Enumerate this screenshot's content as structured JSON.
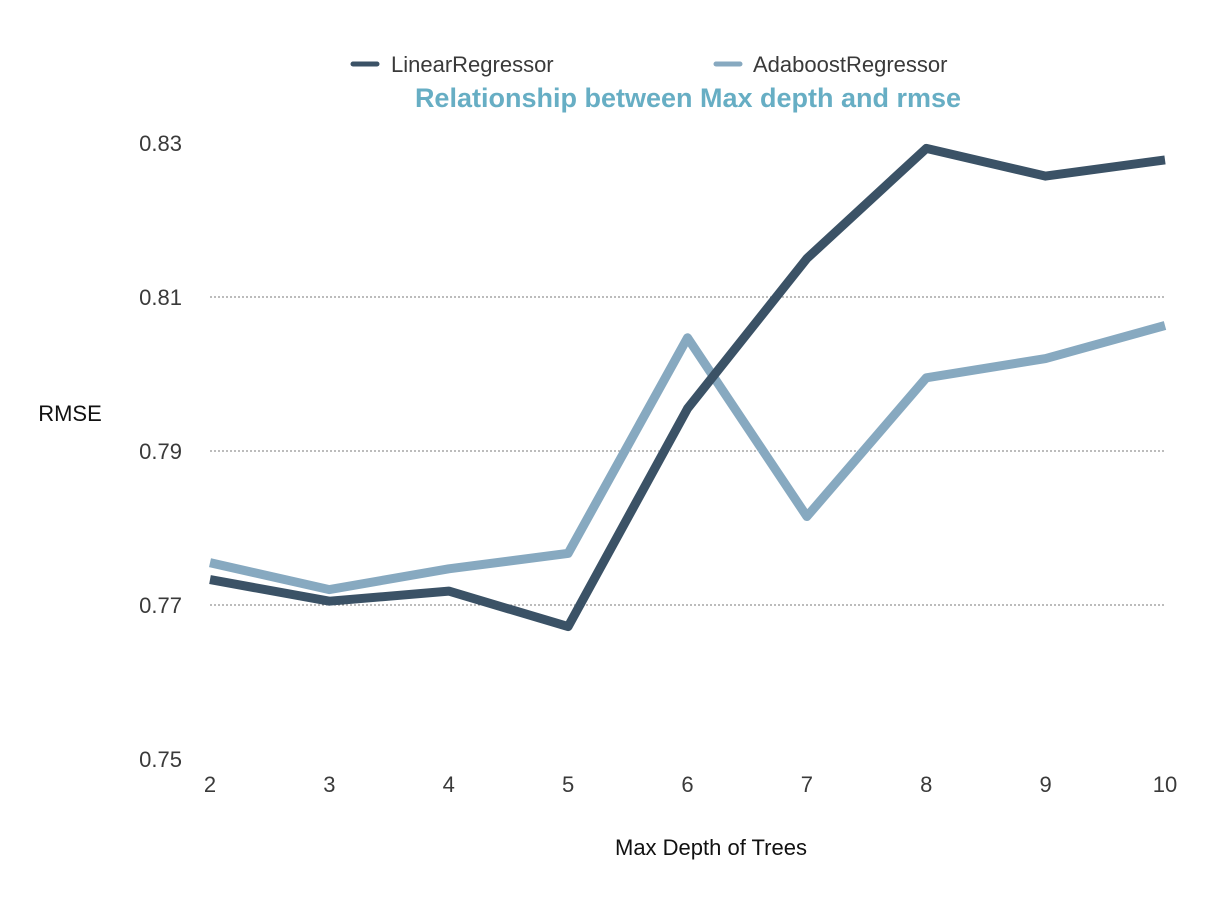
{
  "chart_data": {
    "type": "line",
    "title": "Relationship  between Max depth and rmse",
    "xlabel": "Max Depth of Trees",
    "ylabel": "RMSE",
    "categories": [
      "2",
      "3",
      "4",
      "5",
      "6",
      "7",
      "8",
      "9",
      "10"
    ],
    "y_ticks": [
      "0.75",
      "0.77",
      "0.79",
      "0.81",
      "0.83"
    ],
    "ylim": [
      0.75,
      0.83
    ],
    "grid": true,
    "legend_position": "top",
    "series": [
      {
        "name": "LinearRegressor",
        "color": "#3b5266",
        "values": [
          0.7733,
          0.7705,
          0.7718,
          0.7672,
          0.7955,
          0.815,
          0.8293,
          0.8257,
          0.8278
        ]
      },
      {
        "name": "AdaboostRegressor",
        "color": "#87a9c0",
        "values": [
          0.7755,
          0.772,
          0.7747,
          0.7767,
          0.8047,
          0.7815,
          0.7995,
          0.802,
          0.8063
        ]
      }
    ],
    "title_color": "#67aec4"
  }
}
